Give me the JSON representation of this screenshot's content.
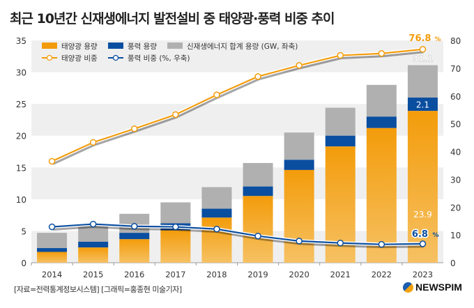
{
  "title": "최근 10년간 신재생에너지 발전설비 중 태양광·풍력 비중 추이",
  "footer": "[자료=전력통계정보시스템] [그래픽=홍종현 미술기자]",
  "logo": "NEWSPIM",
  "chart_data": {
    "type": "bar",
    "categories": [
      "2014",
      "2015",
      "2016",
      "2017",
      "2018",
      "2019",
      "2020",
      "2021",
      "2022",
      "2023"
    ],
    "series": [
      {
        "name": "태양광 용량",
        "kind": "stacked-bar",
        "axis": "left",
        "color": "#f39c0b",
        "values": [
          1.7,
          2.4,
          3.7,
          5.1,
          7.1,
          10.5,
          14.6,
          18.3,
          21.2,
          23.9
        ]
      },
      {
        "name": "풍력 용량",
        "kind": "stacked-bar",
        "axis": "left",
        "color": "#0a4ea0",
        "values": [
          0.6,
          0.9,
          1.0,
          1.1,
          1.4,
          1.5,
          1.6,
          1.7,
          1.8,
          2.1
        ]
      },
      {
        "name": "신재생에너지 합계 용량 (GW, 좌축)",
        "kind": "total-bar",
        "axis": "left",
        "color": "#b0b0b0",
        "values": [
          4.7,
          6.1,
          7.7,
          9.5,
          11.9,
          15.7,
          20.5,
          24.4,
          28.0,
          31.1
        ]
      },
      {
        "name": "태양광 비중",
        "kind": "line",
        "axis": "right",
        "color": "#f39c0b",
        "values": [
          36.5,
          43.3,
          48.2,
          53.3,
          60.4,
          67.0,
          71.0,
          74.6,
          75.3,
          76.8
        ]
      },
      {
        "name": "풍력 비중 (%, 우축)",
        "kind": "line",
        "axis": "right",
        "color": "#0a4ea0",
        "values": [
          12.9,
          13.9,
          13.1,
          12.9,
          12.1,
          9.6,
          7.8,
          7.1,
          6.6,
          6.8
        ]
      }
    ],
    "left_axis": {
      "range": [
        0,
        35
      ],
      "ticks": [
        "0",
        "5",
        "10",
        "15",
        "20",
        "25",
        "30",
        "35"
      ]
    },
    "right_axis": {
      "range": [
        0,
        80
      ],
      "ticks": [
        "0",
        "10",
        "20",
        "30",
        "40",
        "50",
        "60",
        "70",
        "80"
      ]
    },
    "annotations": {
      "solar_share_2023": "76.8",
      "percent": "%",
      "total_2023": "31.1",
      "wind_2023": "2.1",
      "solar_2023": "23.9",
      "wind_share_2023": "6.8"
    },
    "grid": "alternating bands",
    "legend_placement": "top-left"
  }
}
